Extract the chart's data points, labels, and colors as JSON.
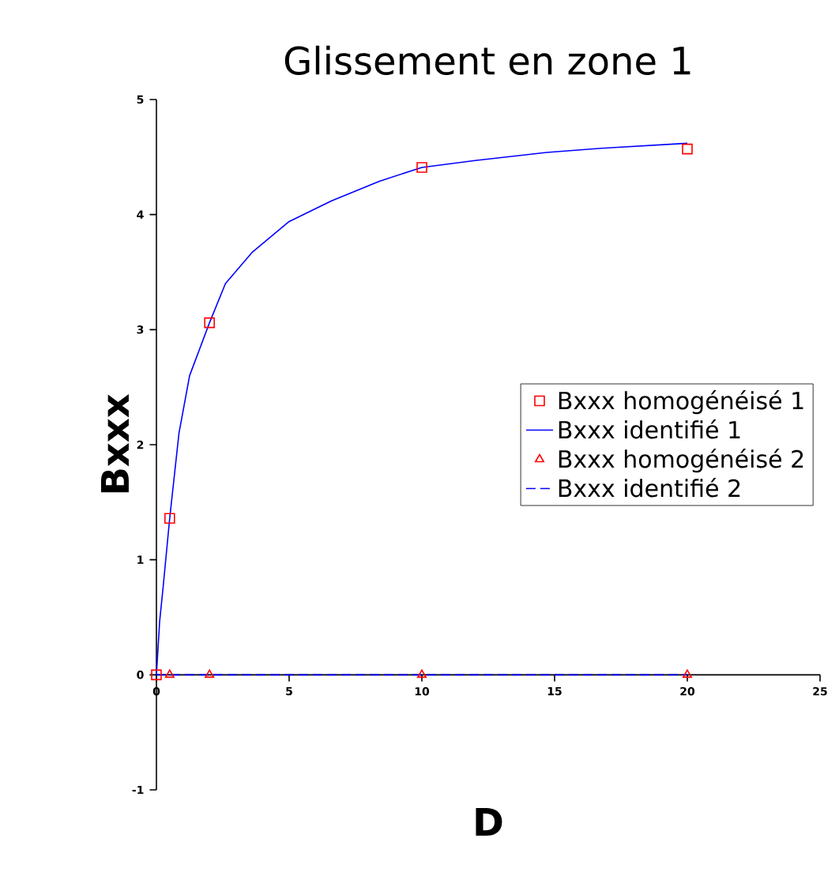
{
  "chart_data": {
    "type": "line",
    "title": "Glissement en zone 1",
    "xlabel": "D",
    "ylabel": "Bxxx",
    "xlim": [
      0,
      25
    ],
    "xticks": [
      0,
      5,
      10,
      15,
      20,
      25
    ],
    "ylim": [
      -1,
      5
    ],
    "yticks": [
      -1,
      0,
      1,
      2,
      3,
      4,
      5
    ],
    "legend": "right",
    "series": [
      {
        "name": "Bxxx homogénéisé 1",
        "type": "scatter",
        "marker": "square",
        "color": "#ff0000",
        "x": [
          0,
          0.5,
          2,
          10,
          20
        ],
        "values": [
          0,
          1.36,
          3.06,
          4.41,
          4.57
        ]
      },
      {
        "name": "Bxxx identifié 1",
        "type": "line",
        "line_style": "solid",
        "color": "#0000ff",
        "x": [
          0,
          0.12,
          0.26,
          0.5,
          0.85,
          1.25,
          2,
          2.6,
          3.6,
          5,
          6.6,
          8.4,
          10,
          12,
          14.7,
          17,
          20
        ],
        "values": [
          0,
          0.46,
          0.78,
          1.36,
          2.1,
          2.6,
          3.06,
          3.4,
          3.67,
          3.94,
          4.12,
          4.29,
          4.41,
          4.47,
          4.54,
          4.58,
          4.62
        ]
      },
      {
        "name": "Bxxx homogénéisé 2",
        "type": "scatter",
        "marker": "triangle",
        "color": "#ff0000",
        "x": [
          0.5,
          2,
          10,
          20
        ],
        "values": [
          0,
          0,
          0,
          0
        ]
      },
      {
        "name": "Bxxx identifié 2",
        "type": "line",
        "line_style": "dashed",
        "color": "#0000ff",
        "x": [
          0,
          0.5,
          2,
          10,
          20
        ],
        "values": [
          0,
          0,
          0,
          0,
          0
        ]
      }
    ]
  }
}
